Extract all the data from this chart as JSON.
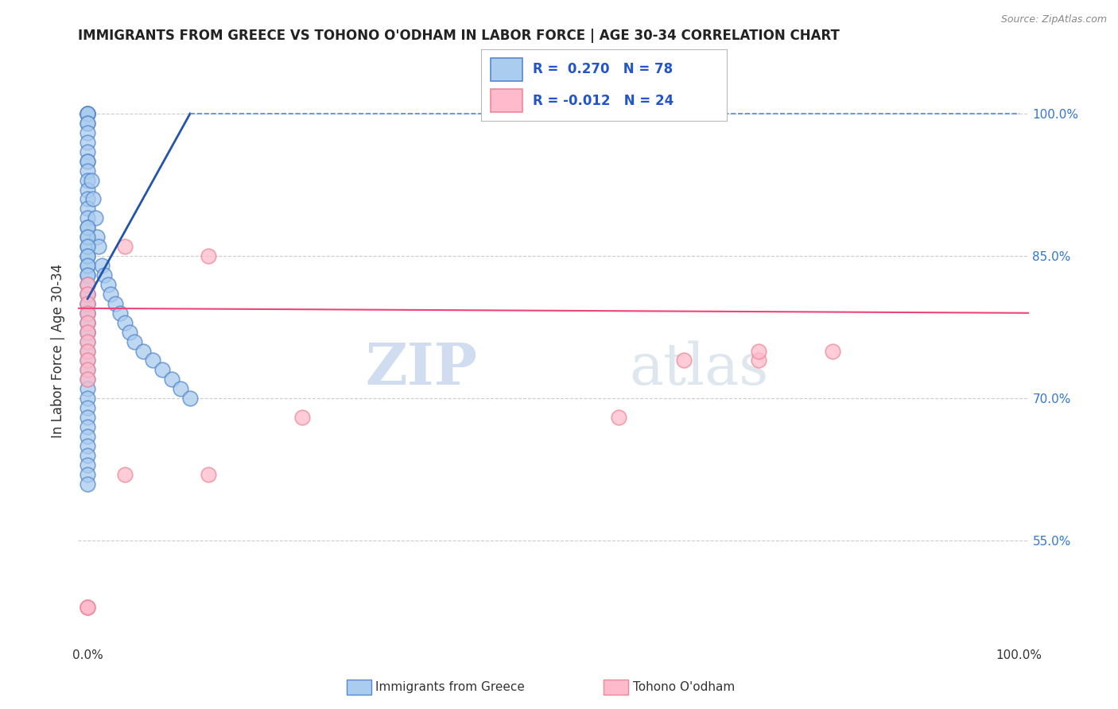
{
  "title": "IMMIGRANTS FROM GREECE VS TOHONO O'ODHAM IN LABOR FORCE | AGE 30-34 CORRELATION CHART",
  "source": "Source: ZipAtlas.com",
  "ylabel": "In Labor Force | Age 30-34",
  "y_tick_values": [
    0.55,
    0.7,
    0.85,
    1.0
  ],
  "y_tick_labels": [
    "55.0%",
    "70.0%",
    "85.0%",
    "100.0%"
  ],
  "x_tick_labels": [
    "0.0%",
    "100.0%"
  ],
  "xlim": [
    -0.01,
    1.01
  ],
  "ylim": [
    0.44,
    1.06
  ],
  "grid_color": "#cccccc",
  "background_color": "#ffffff",
  "blue_scatter_x": [
    0.0,
    0.0,
    0.0,
    0.0,
    0.0,
    0.0,
    0.0,
    0.0,
    0.0,
    0.0,
    0.0,
    0.0,
    0.0,
    0.0,
    0.0,
    0.0,
    0.0,
    0.0,
    0.0,
    0.0,
    0.0,
    0.0,
    0.0,
    0.0,
    0.0,
    0.0,
    0.0,
    0.0,
    0.0,
    0.0,
    0.004,
    0.006,
    0.008,
    0.01,
    0.012,
    0.015,
    0.018,
    0.022,
    0.025,
    0.03,
    0.035,
    0.04,
    0.045,
    0.05,
    0.06,
    0.07,
    0.08,
    0.09,
    0.1,
    0.11,
    0.0,
    0.0,
    0.0,
    0.0,
    0.0,
    0.0,
    0.0,
    0.0,
    0.0,
    0.0,
    0.0,
    0.0,
    0.0,
    0.0,
    0.0,
    0.0,
    0.0,
    0.0,
    0.0,
    0.0,
    0.0,
    0.0,
    0.0,
    0.0,
    0.0,
    0.0,
    0.0,
    0.0
  ],
  "blue_scatter_y": [
    1.0,
    1.0,
    1.0,
    1.0,
    1.0,
    0.99,
    0.99,
    0.98,
    0.97,
    0.96,
    0.95,
    0.95,
    0.94,
    0.93,
    0.92,
    0.91,
    0.9,
    0.89,
    0.88,
    0.87,
    0.86,
    0.85,
    0.84,
    0.83,
    0.82,
    0.81,
    0.8,
    0.79,
    0.78,
    0.77,
    0.93,
    0.91,
    0.89,
    0.87,
    0.86,
    0.84,
    0.83,
    0.82,
    0.81,
    0.8,
    0.79,
    0.78,
    0.77,
    0.76,
    0.75,
    0.74,
    0.73,
    0.72,
    0.71,
    0.7,
    0.88,
    0.87,
    0.86,
    0.85,
    0.84,
    0.83,
    0.82,
    0.81,
    0.8,
    0.79,
    0.78,
    0.77,
    0.76,
    0.75,
    0.74,
    0.73,
    0.72,
    0.71,
    0.7,
    0.69,
    0.68,
    0.67,
    0.66,
    0.65,
    0.64,
    0.63,
    0.62,
    0.61
  ],
  "pink_scatter_x": [
    0.0,
    0.0,
    0.0,
    0.0,
    0.0,
    0.0,
    0.0,
    0.04,
    0.13,
    0.23,
    0.57,
    0.64,
    0.72,
    0.0,
    0.0,
    0.0,
    0.0,
    0.04,
    0.13,
    0.72,
    0.8,
    0.0,
    0.0,
    0.0
  ],
  "pink_scatter_y": [
    0.82,
    0.81,
    0.8,
    0.79,
    0.78,
    0.77,
    0.76,
    0.86,
    0.85,
    0.68,
    0.68,
    0.74,
    0.74,
    0.75,
    0.74,
    0.73,
    0.72,
    0.62,
    0.62,
    0.75,
    0.75,
    0.48,
    0.48,
    0.48
  ],
  "pink_trend_y": 0.795,
  "blue_trend_start_x": 0.0,
  "blue_trend_start_y": 0.805,
  "blue_trend_end_x": 0.11,
  "blue_trend_end_y": 1.0,
  "blue_trend_dash_end_x": 1.0,
  "blue_trend_dash_end_y": 1.0,
  "watermark_zip": "ZIP",
  "watermark_atlas": "atlas",
  "legend_blue_label": "R =  0.270   N = 78",
  "legend_pink_label": "R = -0.012   N = 24"
}
